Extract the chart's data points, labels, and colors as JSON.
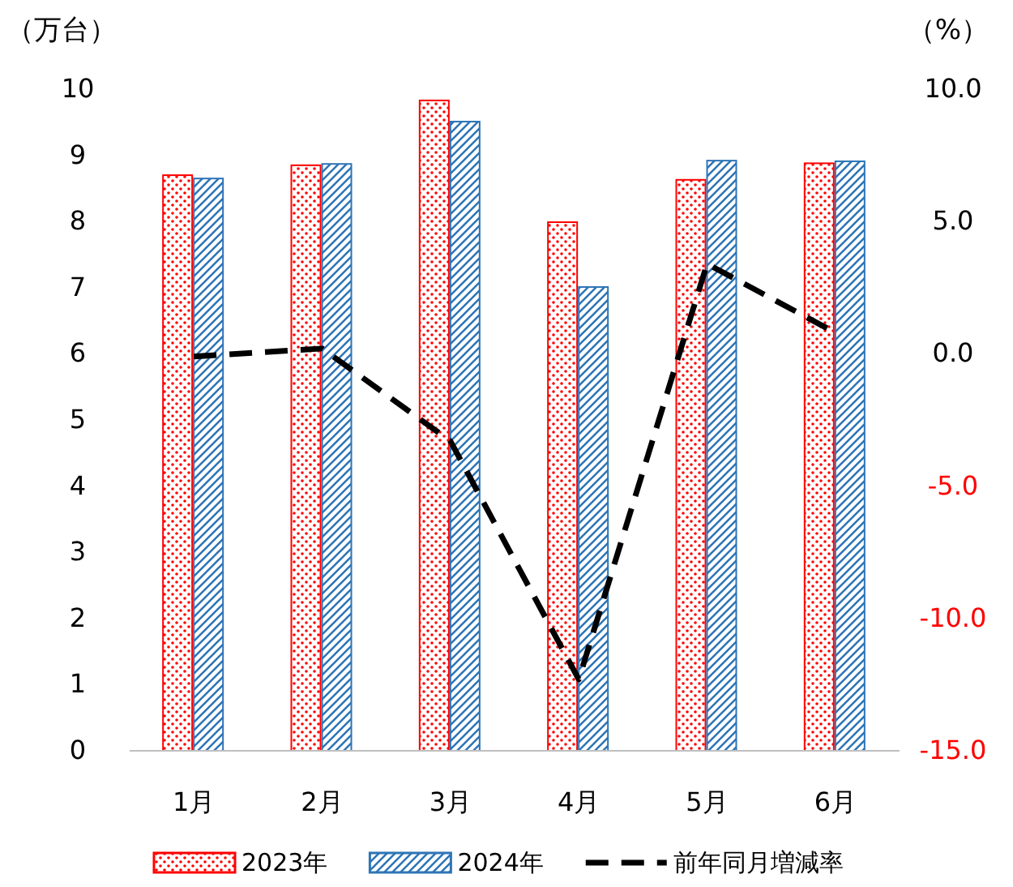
{
  "chart_data": {
    "type": "bar",
    "categories": [
      "1月",
      "2月",
      "3月",
      "4月",
      "5月",
      "6月"
    ],
    "ylabel": "（万台）",
    "y2label": "（%）",
    "ylim": [
      0,
      10
    ],
    "yticks": [
      0,
      1,
      2,
      3,
      4,
      5,
      6,
      7,
      8,
      9,
      10
    ],
    "y2lim": [
      -15,
      10
    ],
    "y2ticks": [
      {
        "value": -15,
        "label": "-15.0"
      },
      {
        "value": -10,
        "label": "-10.0"
      },
      {
        "value": -5,
        "label": "-5.0"
      },
      {
        "value": 0,
        "label": "0.0"
      },
      {
        "value": 5,
        "label": "5.0"
      },
      {
        "value": 10,
        "label": "10.0"
      }
    ],
    "legend": "bottom",
    "series": [
      {
        "name": "2023年",
        "color": "#ff0000",
        "values": [
          8.7,
          8.85,
          9.83,
          7.99,
          8.63,
          8.88
        ]
      },
      {
        "name": "2024年",
        "color": "#2e75b6",
        "values": [
          8.65,
          8.87,
          9.51,
          7.01,
          8.92,
          8.91
        ]
      },
      {
        "name": "前年同月増減率",
        "type": "line",
        "axis": "y2",
        "line_style": "dashed",
        "color": "#000000",
        "values": [
          -0.1,
          0.2,
          -3.3,
          -12.3,
          3.4,
          0.8
        ]
      }
    ]
  }
}
